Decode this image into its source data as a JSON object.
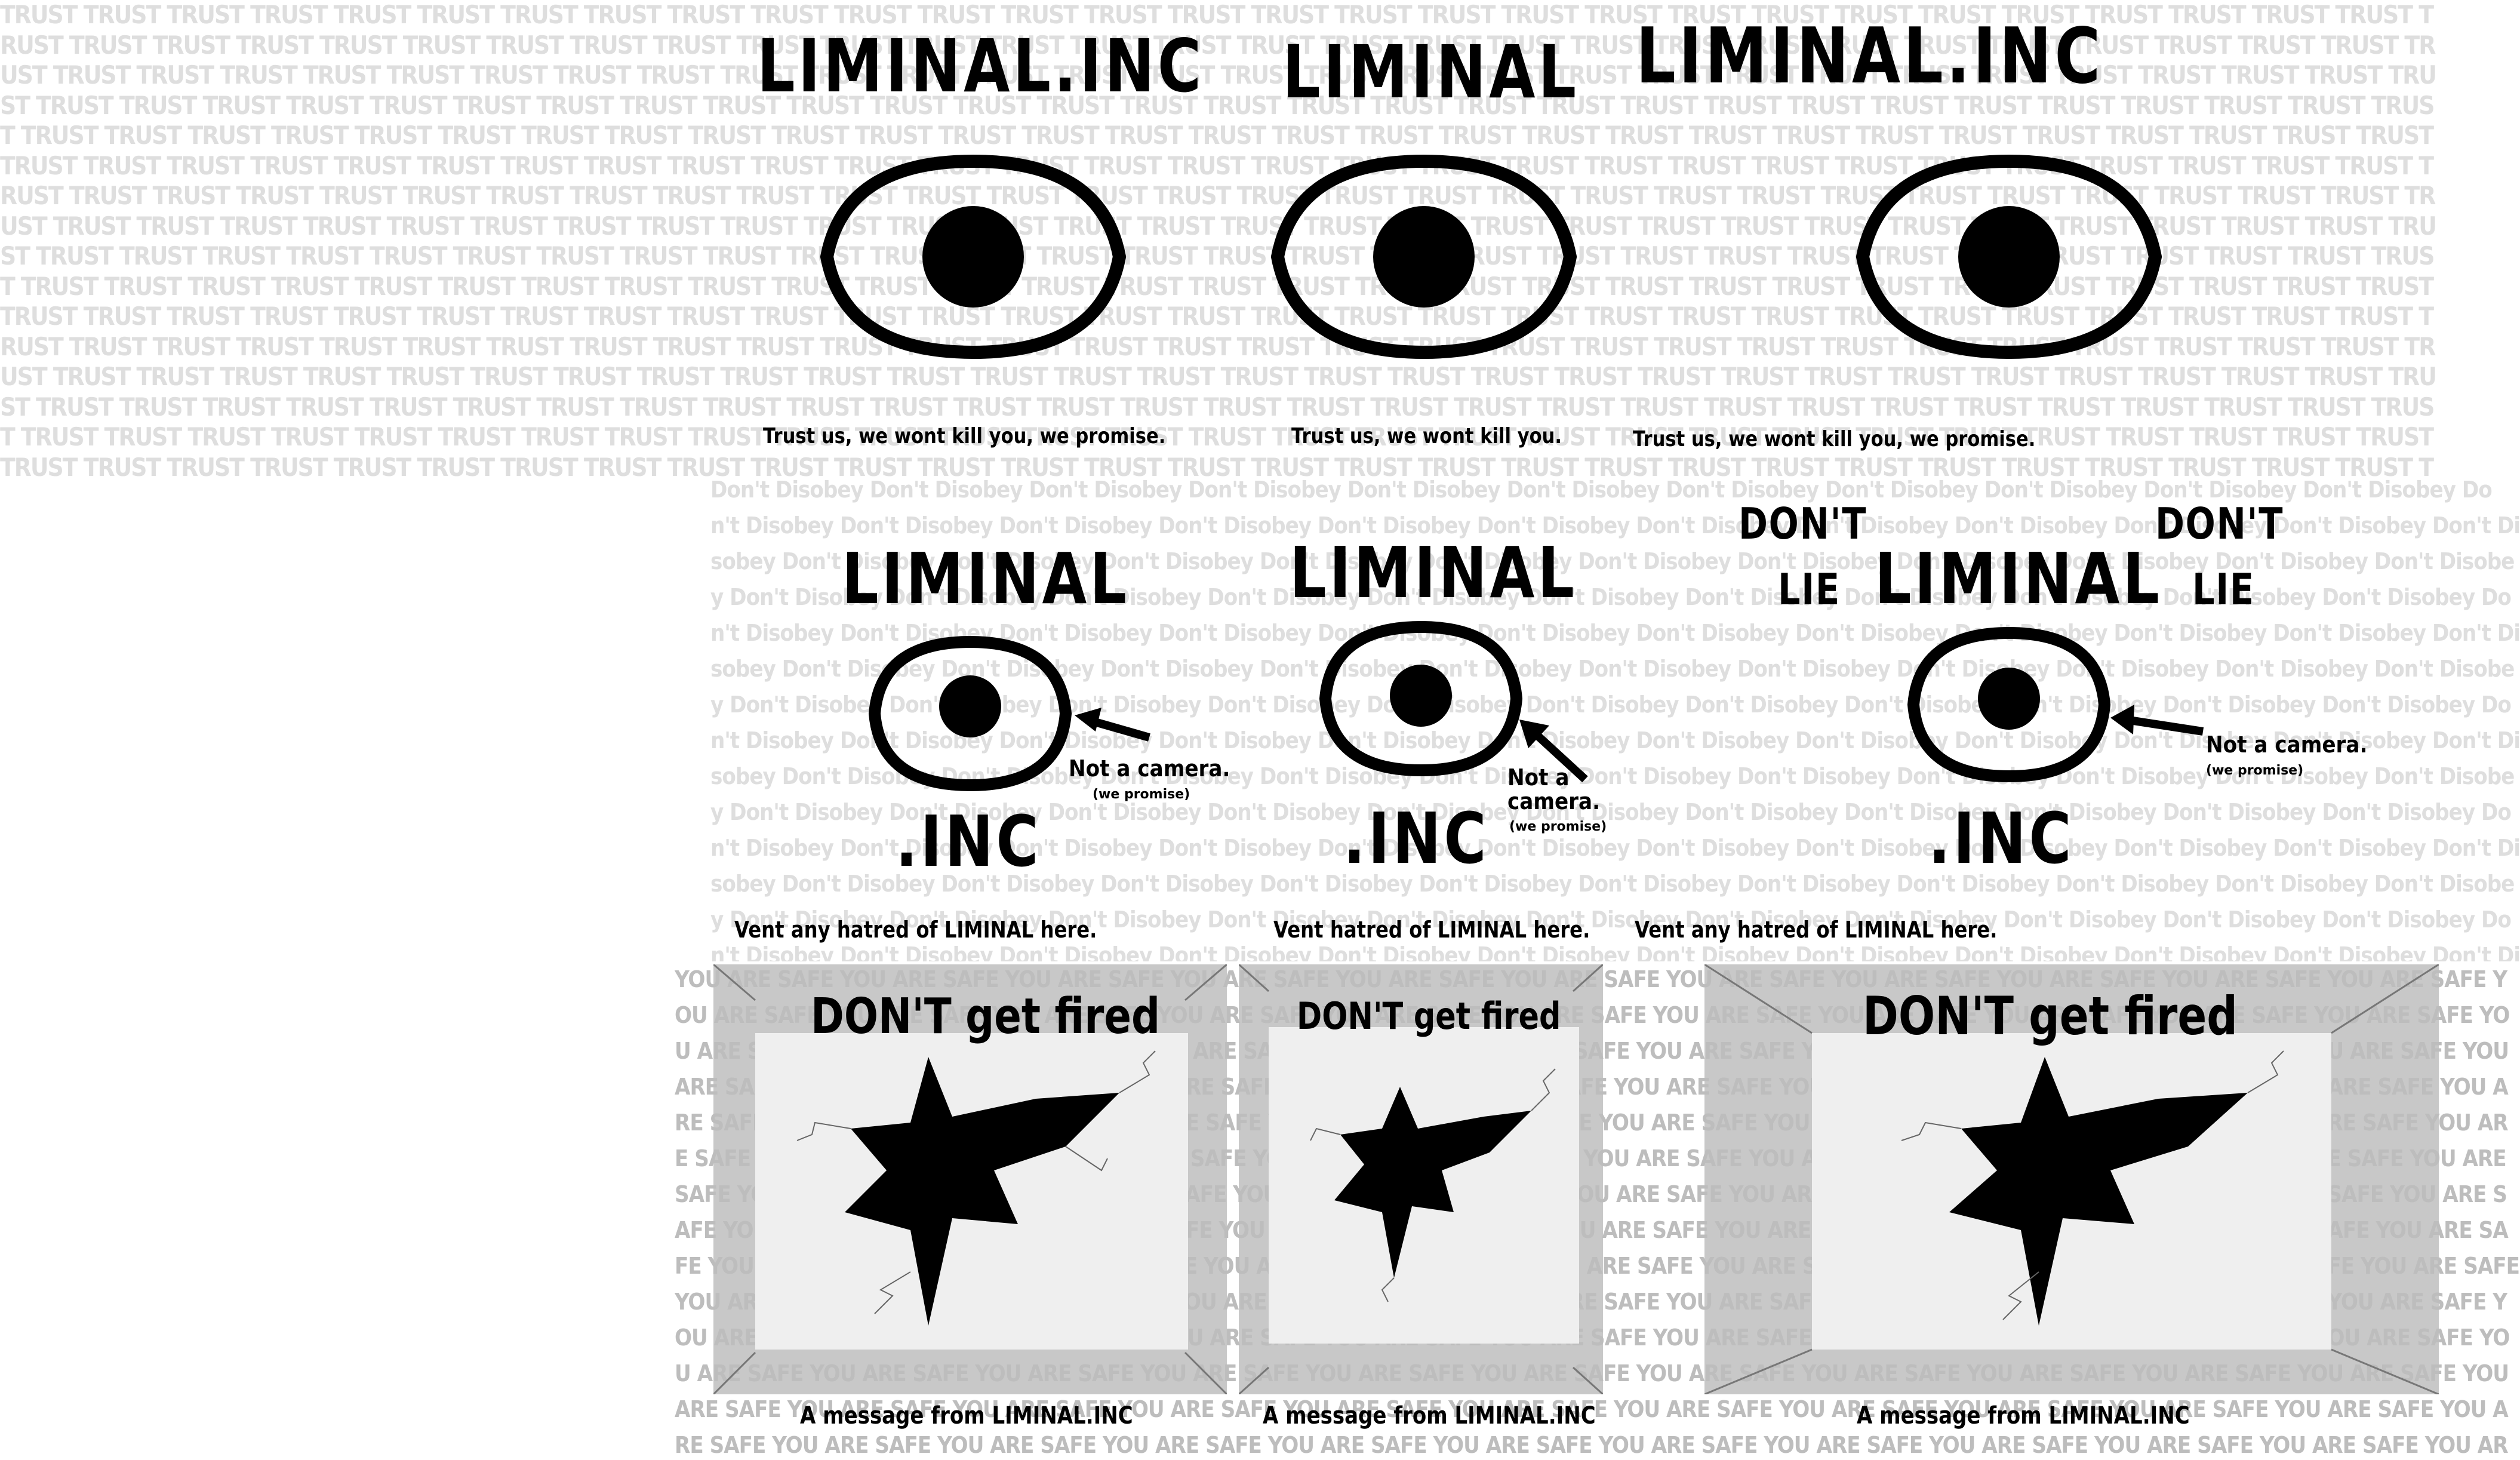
{
  "backgrounds": {
    "trust_text": "TRUST TRUST TRUST TRUST TRUST TRUST TRUST TRUST TRUST TRUST TRUST TRUST TRUST TRUST TRUST TRUST TRUST TRUST TRUST TRUST TRUST TRUST TRUST TRUST TRUST TRUST TRUST TRUST TRUST TRUST TRUST TRUST TRUST TRUST TRUST TRUST TRUST TRUST TRUST TRUST TRUST TRUST TRUST TRUST TRUST TRUST TRUST TRUST TRUST TRUST TRUST TRUST TRUST TRUST TRUST TRUST TRUST TRUST TRUST TRUST TRUST TRUST TRUST TRUST TRUST TRUST TRUST TRUST TRUST TRUST TRUST TRUST TRUST TRUST TRUST TRUST TRUST TRUST TRUST TRUST TRUST TRUST TRUST TRUST TRUST TRUST TRUST TRUST TRUST TRUST TRUST TRUST TRUST TRUST TRUST TRUST TRUST TRUST TRUST TRUST TRUST TRUST TRUST TRUST TRUST TRUST TRUST TRUST TRUST TRUST TRUST TRUST TRUST TRUST TRUST TRUST TRUST TRUST TRUST TRUST TRUST TRUST TRUST TRUST TRUST TRUST TRUST TRUST TRUST TRUST TRUST TRUST TRUST TRUST TRUST TRUST TRUST TRUST TRUST TRUST TRUST TRUST TRUST TRUST TRUST TRUST TRUST TRUST TRUST TRUST TRUST TRUST TRUST TRUST TRUST TRUST TRUST TRUST TRUST TRUST TRUST TRUST TRUST TRUST TRUST TRUST TRUST TRUST TRUST TRUST TRUST TRUST TRUST TRUST TRUST TRUST TRUST TRUST TRUST TRUST TRUST TRUST TRUST TRUST TRUST TRUST TRUST TRUST TRUST TRUST TRUST TRUST TRUST TRUST TRUST TRUST TRUST TRUST TRUST TRUST TRUST TRUST TRUST TRUST TRUST TRUST TRUST TRUST TRUST TRUST TRUST TRUST TRUST TRUST TRUST TRUST TRUST TRUST TRUST TRUST TRUST TRUST TRUST TRUST TRUST TRUST TRUST TRUST TRUST TRUST TRUST TRUST TRUST TRUST TRUST TRUST TRUST TRUST TRUST TRUST TRUST TRUST TRUST TRUST TRUST TRUST TRUST TRUST TRUST TRUST TRUST TRUST TRUST TRUST TRUST TRUST TRUST TRUST TRUST TRUST TRUST TRUST TRUST TRUST TRUST TRUST TRUST TRUST TRUST TRUST TRUST TRUST TRUST TRUST TRUST TRUST TRUST TRUST TRUST TRUST TRUST TRUST TRUST TRUST TRUST TRUST TRUST TRUST TRUST TRUST TRUST TRUST TRUST TRUST TRUST TRUST TRUST TRUST TRUST TRUST TRUST TRUST TRUST TRUST TRUST TRUST TRUST TRUST TRUST TRUST TRUST TRUST TRUST TRUST TRUST TRUST TRUST TRUST TRUST TRUST TRUST TRUST TRUST TRUST TRUST TRUST TRUST TRUST TRUST TRUST TRUST TRUST TRUST TRUST TRUST TRUST TRUST TRUST TRUST TRUST TRUST TRUST TRUST TRUST TRUST TRUST TRUST TRUST TRUST TRUST TRUST TRUST TRUST TRUST TRUST TRUST TRUST TRUST TRUST TRUST TRUST TRUST TRUST TRUST TRUST TRUST TRUST TRUST TRUST TRUST TRUST TRUST TRUST TRUST TRUST TRUST TRUST TRUST TRUST TRUST TRUST TRUST TRUST TRUST TRUST TRUST TRUST TRUST TRUST TRUST TRUST TRUST TRUST TRUST TRUST TRUST TRUST TRUST TRUST TRUST TRUST TRUST TRUST TRUST TRUST TRUST TRUST TRUST TRUST TRUST TRUST TRUST TRUST TRUST TRUST TRUST TRUST TRUST TRUST TRUST TRUST TRUST TRUST TRUST TRUST TRUST TRUST TRUST TRUST TRUST TRUST TRUST TRUST TRUST TRUST TRUST TRUST TRUST TRUST TRUST TRUST TRUST TRUST TRUST TRUST TRUST TRUST TRUST TRUST TRUST TRUST TRUST TRUST TRUST TRUST TRUST TRUST TRUST TRUST TRUST TRUST TRUST TRUST TRUST TRUST TRUST TRUST TRUST TRUST TRUST TRUST TRUST TRUST TRUST TRUST TRUST TRUST TRUST TRUST TRUST TRUST TRUST TRUST TRUST TRUST TRUST TRUST TRUST TRUST TRUST TRUST TRUST TRUST TRUST TRUST TRUST TRUST TRUST TRUST TRUST TRUST TRUST TRUST TRUST TRUST TRUST TRUST TRUST TRUST TRUST TRUST TRUST TRUST TRUST TRUST TRUST TRUST TRUST TRUST TRUST TRUST TRUST TRUST TRUST TRUST TRUST TRUST TRUST TRUST TRUST TRUST TRUST TRUST TRUST TRUST TRUST TRUST TRUST TRUST TRUST TRUST TRUST TRUST TRUST TRUST TRUST TRUST TRUST TRUST TRUST TRUST TRUST TRUST TRUST TRUST TRUST TRUST TRUST TRUST TRUST TRUST TRUST TRUST TRUST TRUST TRUST TRUST TRUST TRUST TRUST TRUST TRUST TRUST TRUST TRUST TRUST TRUST TRUST TRUST TRUST TRUST TRUST TRUST TRUST TRUST TRUST TRUST TRUST TRUST TRUST TRUST TRUST TRUST TRUST TRUST TRUST TRUST TRUST TRUST TRUST TRUST TRUST TRUST TRUST TRUST TRUST TRUST TRUST TRUST TRUST TRUST TRUST TRUST TRUST TRUST TRUST TRUST TRUST TRUST TRUST TRUST TRUST TRUST TRUST TRUST TRUST TRUST TRUST TRUST TRUST TRUST TRUST TRUST TRUST TRUST TRUST TRUST TRUST TRUST TRUST TRUST TRUST TRUST TRUST TRUST TRUST TRUST TRUST TRUST TRUST TRUST TRUST TRUST TRUST TRUST TRUST TRUST TRUST TRUST TRUST TRUST TRUST TRUST TRUST TRUST TRUST TRUST TRUST TRUST TRUST TRUST TRUST TRUST TRUST TRUST TRUST TRUST TRUST TRUST TRUST TRUST TRUST TRUST TRUST TRUST TRUST TRUST TRUST TRUST TRUST TRUST TRUST TRUST TRUST TRUST TRUST TRUST TRUST TRUST TRUST TRUST TRUST TRUST TRUST TRUST TRUST TRUST TRUST TRUST TRUST TRUST TRUST TRUST TRUST TRUST TRUST TRUST TRUST TRUST TRUST TRUST TRUST TRUST TRUST TRUST TRUST TRUST TRUST TRUST TRUST TRUST TRUST TRUST TRUST TRUST TRUST TRUST TRUST TRUST TRUST TRUST TRUST TRUST TRUST TRUST TRUST TRUST TRUST TRUST TRUST TRUST TRUST TRUST TRUST TRUST TRUST TRUST TRUST TRUST TRUST TRUST TRUST TRUST TRUST TRUST TRUST TRUST TRUST TRUST TRUST TRUST TRUST TRUST TRUST TRUST TRUST TRUST TRUST TRUST TRUST TRUST TRUST TRUST TRUST TRUST TRUST TRUST TRUST TRUST TRUST TRUST TRUST TRUST TRUST TRUST TRUST TRUST TRUST TRUST TRUST TRUST TRUST TRUST TRUST TRUST TRUST TRUST TRUST TRUST TRUST TRUST TRUST TRUST TRUST TRUST TRUST TRUST TRUST TRUST TRUST TRUST TRUST TRUST TRUST TRUST TRUST TRUST TRUST TRUST TRUST TRUST TRUST TRUST TRUST TRUST TRUST TRUST TRUST TRUST TRUST TRUST TRUST TRUST TRUST TRUST TRUST TRUST TRUST TRUST TRUST TRUST TRUST TRUST TRUST TRUST TRUST TRUST TRUST TRUST TRUST TRUST TRUST TRUST TRUST TRUST TRUST TRUST TRUST TRUST TRUST TRUST TRUST TRUST TRUST TRUST TRUST TRUST TRUST TRUST TRUST TRUST TRUST TRUST TRUST TRUST TRUST TRUST TRUST TRUST TRUST TRUST TRUST TRUST TRUST TRUST TRUST TRUST TRUST TRUST TRUST TRUST TRUST TRUST TRUST TRUST TRUST TRUST TRUST TRUST TRUST TRUST TRUST TRUST TRUST TRUST TRUST TRUST TRUST TRUST TRUST TRUST TRUST TRUST TRUST TRUST TRUST TRUST TRUST TRUST TRUST TRUST TRUST TRUST TRUST TRUST TRUST TRUST TRUST TRUST TRUST TRUST TRUST TRUST TRUST TRUST TRUST TRUST TRUST TRUST TRUST TRUST TRUST TRUST TRUST TRUST TRUST TRUST TRUST TRUST TRUST TRUST TRUST TRUST TRUST TRUST TRUST TRUST TRUST TRUST TRUST TRUST TRUST TRUST TRUST TRUST TRUST TRUST TRUST TRUST TRUST TRUST TRUST TRUST TRUST TRUST TRUST TRUST TRUST TRUST TRUST TRUST TRUST TRUST TRUST TRUST TRUST TRUST TRUST TRUST TRUST TRUST TRUST TRUST TRUST TRUST TRUST TRUST TRUST TRUST TRUST TRUST TRUST TRUST TRUST TRUST TRUST TRUST TRUST TRUST TRUST TRUST TRUST TRUST TRUST TRUST TRUST TRUST TRUST TRUST TRUST TRUST TRUST TRUST TRUST TRUST TRUST TRUST TRUST TRUST TRUST TRUST TRUST TRUST TRUST TRUST TRUST TRUST TRUST TRUST TRUST TRUST TRUST TRUST TRUST TRUST TRUST TRUST TRUST TRUST TRUST TRUST TRUST TRUST TRUST TRUST TRUST TRUST TRUST TRUST TRUST TRUST TRUST TRUST TRUST TRUST TRUST TRUST TRUST TRUST TRUST TRUST TRUST TRUST TRUST TRUST TRUST TRUST TRUST TRUST TRUST TRUST TRUST TRUST TRUST TRUST TRUST TRUST TRUST TRUST TRUST TRUST TRUST TRUST TRUST TRUST TRUST TRUST TRUST TRUST TRUST TRUST TRUST TRUST TRUST TRUST TRUST TRUST TRUST TRUST TRUST TRUST TRUST TRUST TRUST TRUST TRUST TRUST TRUST TRUST TRUST TRUST TRUST TRUST TRUST TRUST TRUST TRUST TRUST TRUST TRUST TRUST TRUST TRUST TRUST TRUST TRUST TRUST TRUST TRUST TRUST TRUST TRUST TRUST",
    "disobey_text": "Don't Disobey Don't Disobey Don't Disobey Don't Disobey Don't Disobey Don't Disobey Don't Disobey Don't Disobey Don't Disobey Don't Disobey Don't Disobey Don't Disobey Don't Disobey Don't Disobey Don't Disobey Don't Disobey Don't Disobey Don't Disobey Don't Disobey Don't Disobey Don't Disobey Don't Disobey Don't Disobey Don't Disobey Don't Disobey Don't Disobey Don't Disobey Don't Disobey Don't Disobey Don't Disobey Don't Disobey Don't Disobey Don't Disobey Don't Disobey Don't Disobey Don't Disobey Don't Disobey Don't Disobey Don't Disobey Don't Disobey Don't Disobey Don't Disobey Don't Disobey Don't Disobey Don't Disobey Don't Disobey Don't Disobey Don't Disobey Don't Disobey Don't Disobey Don't Disobey Don't Disobey Don't Disobey Don't Disobey Don't Disobey Don't Disobey Don't Disobey Don't Disobey Don't Disobey Don't Disobey Don't Disobey Don't Disobey Don't Disobey Don't Disobey Don't Disobey Don't Disobey Don't Disobey Don't Disobey Don't Disobey Don't Disobey Don't Disobey Don't Disobey Don't Disobey Don't Disobey Don't Disobey Don't Disobey Don't Disobey Don't Disobey Don't Disobey Don't Disobey Don't Disobey Don't Disobey Don't Disobey Don't Disobey Don't Disobey Don't Disobey Don't Disobey Don't Disobey Don't Disobey Don't Disobey Don't Disobey Don't Disobey Don't Disobey Don't Disobey Don't Disobey Don't Disobey Don't Disobey Don't Disobey Don't Disobey Don't Disobey Don't Disobey Don't Disobey Don't Disobey Don't Disobey Don't Disobey Don't Disobey Don't Disobey Don't Disobey Don't Disobey Don't Disobey Don't Disobey Don't Disobey Don't Disobey Don't Disobey Don't Disobey Don't Disobey Don't Disobey Don't Disobey Don't Disobey Don't Disobey Don't Disobey Don't Disobey Don't Disobey Don't Disobey Don't Disobey Don't Disobey Don't Disobey Don't Disobey Don't Disobey Don't Disobey Don't Disobey Don't Disobey Don't Disobey Don't Disobey Don't Disobey Don't Disobey Don't Disobey Don't Disobey Don't Disobey Don't Disobey Don't Disobey Don't Disobey Don't Disobey Don't Disobey Don't Disobey Don't Disobey Don't Disobey Don't Disobey Don't Disobey Don't Disobey Don't Disobey Don't Disobey Don't Disobey Don't Disobey Don't Disobey Don't Disobey Don't Disobey Don't Disobey Don't Disobey Don't Disobey Don't Disobey Don't Disobey Don't Disobey Don't Disobey Don't Disobey Don't Disobey Don't Disobey Don't Disobey Don't Disobey Don't Disobey Don't Disobey Don't Disobey Don't Disobey Don't Disobey Don't Disobey Don't Disobey Don't Disobey Don't Disobey Don't Disobey Don't Disobey Don't Disobey Don't Disobey Don't Disobey Don't Disobey Don't Disobey Don't Disobey Don't Disobey Don't Disobey Don't Disobey Don't Disobey Don't Disobey Don't Disobey Don't Disobey Don't Disobey Don't Disobey Don't Disobey Don't Disobey Don't Disobey Don't Disobey Don't Disobey Don't Disobey Don't Disobey Don't Disobey Don't Disobey Don't Disobey Don't Disobey Don't Disobey Don't Disobey Don't Disobey Don't Disobey Don't Disobey Don't Disobey Don't Disobey Don't Disobey Don't Disobey Don't Disobey Don't Disobey Don't Disobey Don't Disobey Don't Disobey Don't Disobey Don't Disobey Don't Disobey Don't Disobey Don't Disobey Don't Disobey Don't Disobey Don't Disobey Don't Disobey Don't Disobey Don't Disobey Don't Disobey Don't Disobey Don't Disobey Don't Disobey Don't Disobey Don't Disobey Don't Disobey Don't Disobey Don't Disobey Don't Disobey Don't Disobey Don't Disobey Don't Disobey Don't Disobey Don't Disobey Don't Disobey Don't Disobey Don't Disobey Don't Disobey Don't Disobey Don't Disobey Don't Disobey Don't Disobey Don't Disobey Don't Disobey Don't Disobey Don't Disobey Don't Disobey Don't Disobey Don't Disobey Don't Disobey Don't Disobey Don't Disobey Don't Disobey Don't Disobey Don't Disobey Don't Disobey Don't Disobey Don't Disobey Don't Disobey Don't Disobey Don't Disobey Don't Disobey Don't Disobey Don't Disobey Don't Disobey Don't Disobey Don't Disobey Don't Disobey Don't Disobey Don't Disobey Don't Disobey Don't Disobey Don't Disobey Don't Disobey Don't Disobey Don't Disobey",
    "safe_text": "YOU ARE SAFE YOU ARE SAFE YOU ARE SAFE YOU ARE SAFE YOU ARE SAFE YOU ARE SAFE YOU ARE SAFE YOU ARE SAFE YOU ARE SAFE YOU ARE SAFE YOU ARE SAFE YOU ARE SAFE YOU ARE SAFE YOU ARE SAFE YOU ARE SAFE YOU ARE SAFE YOU ARE SAFE YOU ARE SAFE YOU ARE SAFE YOU ARE SAFE YOU ARE SAFE YOU ARE SAFE YOU ARE SAFE YOU ARE SAFE YOU ARE SAFE YOU ARE SAFE YOU ARE SAFE YOU ARE SAFE YOU ARE SAFE YOU ARE SAFE YOU ARE SAFE YOU ARE SAFE YOU ARE SAFE YOU ARE SAFE YOU ARE SAFE YOU ARE SAFE YOU ARE SAFE YOU ARE SAFE YOU ARE SAFE YOU ARE SAFE YOU ARE SAFE YOU ARE SAFE YOU ARE SAFE YOU ARE SAFE YOU ARE SAFE YOU ARE SAFE YOU ARE SAFE YOU ARE SAFE YOU ARE SAFE YOU ARE SAFE YOU ARE SAFE YOU ARE SAFE YOU ARE SAFE YOU ARE SAFE YOU ARE SAFE YOU ARE SAFE YOU ARE SAFE YOU ARE SAFE YOU ARE SAFE YOU ARE SAFE YOU ARE SAFE YOU ARE SAFE YOU ARE SAFE YOU ARE SAFE YOU ARE SAFE YOU ARE SAFE YOU ARE SAFE YOU ARE SAFE YOU ARE SAFE YOU ARE SAFE YOU ARE SAFE YOU ARE SAFE YOU ARE SAFE YOU ARE SAFE YOU ARE SAFE YOU ARE SAFE YOU ARE SAFE YOU ARE SAFE YOU ARE SAFE YOU ARE SAFE YOU ARE SAFE YOU ARE SAFE YOU ARE SAFE YOU ARE SAFE YOU ARE SAFE YOU ARE SAFE YOU ARE SAFE YOU ARE SAFE YOU ARE SAFE YOU ARE SAFE YOU ARE SAFE YOU ARE SAFE YOU ARE SAFE YOU ARE SAFE YOU ARE SAFE YOU ARE SAFE YOU ARE SAFE YOU ARE SAFE YOU ARE SAFE YOU ARE SAFE YOU ARE SAFE YOU ARE SAFE YOU ARE SAFE YOU ARE SAFE YOU ARE SAFE YOU ARE SAFE YOU ARE SAFE YOU ARE SAFE YOU ARE SAFE YOU ARE SAFE YOU ARE SAFE YOU ARE SAFE YOU ARE SAFE YOU ARE SAFE YOU ARE SAFE YOU ARE SAFE YOU ARE SAFE YOU ARE SAFE YOU ARE SAFE YOU ARE SAFE YOU ARE SAFE YOU ARE SAFE YOU ARE SAFE YOU ARE SAFE YOU ARE SAFE YOU ARE SAFE YOU ARE SAFE YOU ARE SAFE YOU ARE SAFE YOU ARE SAFE YOU ARE SAFE YOU ARE SAFE YOU ARE SAFE YOU ARE SAFE YOU ARE SAFE YOU ARE SAFE YOU ARE SAFE YOU ARE SAFE YOU ARE SAFE YOU ARE SAFE YOU ARE SAFE YOU ARE SAFE YOU ARE SAFE YOU ARE SAFE YOU ARE SAFE YOU ARE SAFE YOU ARE SAFE YOU ARE SAFE YOU ARE SAFE YOU ARE SAFE YOU ARE SAFE YOU ARE SAFE YOU ARE SAFE YOU ARE SAFE YOU ARE SAFE YOU ARE SAFE YOU ARE SAFE YOU ARE SAFE YOU ARE SAFE YOU ARE SAFE YOU ARE SAFE YOU ARE SAFE YOU ARE SAFE YOU ARE SAFE YOU ARE SAFE YOU ARE SAFE YOU ARE SAFE YOU ARE SAFE YOU ARE SAFE YOU ARE SAFE YOU ARE SAFE YOU ARE SAFE YOU ARE SAFE YOU ARE SAFE YOU ARE SAFE YOU ARE SAFE YOU ARE SAFE YOU ARE SAFE YOU ARE SAFE YOU ARE SAFE YOU ARE SAFE YOU ARE SAFE YOU ARE SAFE YOU ARE SAFE YOU ARE SAFE YOU ARE SAFE YOU ARE SAFE YOU ARE SAFE YOU ARE SAFE YOU ARE SAFE YOU ARE SAFE YOU ARE SAFE YOU ARE SAFE YOU ARE SAFE YOU ARE SAFE YOU ARE SAFE YOU ARE SAFE YOU ARE SAFE YOU ARE SAFE YOU ARE SAFE YOU ARE SAFE YOU ARE SAFE YOU ARE SAFE YOU ARE SAFE YOU ARE SAFE YOU ARE SAFE YOU ARE SAFE YOU ARE SAFE YOU ARE SAFE YOU ARE SAFE YOU ARE SAFE YOU ARE SAFE YOU ARE SAFE YOU ARE SAFE YOU ARE SAFE YOU ARE SAFE YOU ARE SAFE YOU ARE SAFE YOU ARE SAFE YOU ARE SAFE YOU ARE SAFE YOU ARE SAFE YOU ARE SAFE YOU ARE SAFE YOU ARE SAFE YOU ARE SAFE YOU ARE SAFE YOU ARE SAFE YOU ARE SAFE YOU ARE SAFE YOU ARE SAFE YOU ARE SAFE YOU ARE SAFE YOU ARE SAFE YOU ARE SAFE YOU ARE SAFE YOU ARE SAFE YOU ARE SAFE YOU ARE SAFE YOU ARE SAFE YOU ARE SAFE YOU ARE SAFE YOU ARE SAFE YOU ARE SAFE YOU ARE SAFE YOU ARE SAFE YOU ARE SAFE YOU ARE SAFE YOU ARE SAFE YOU ARE SAFE YOU ARE SAFE YOU ARE SAFE YOU ARE SAFE YOU ARE SAFE YOU ARE SAFE YOU ARE SAFE YOU ARE SAFE YOU ARE SAFE YOU ARE SAFE YOU ARE SAFE YOU ARE SAFE"
  },
  "row1": {
    "poster1": {
      "logo": "LIMINAL.INC",
      "caption": "Trust us, we wont kill you, we promise."
    },
    "poster2": {
      "logo": "LIMINAL",
      "caption": "Trust us, we wont kill you."
    },
    "poster3": {
      "logo": "LIMINAL.INC",
      "caption": "Trust us, we wont kill you, we promise."
    }
  },
  "row2": {
    "poster1": {
      "logo_top": "LIMINAL",
      "logo_bottom": ".INC",
      "note": "Not a camera.",
      "note_small": "(we promise)",
      "caption": "Vent any hatred of LIMINAL here."
    },
    "poster2": {
      "logo_top": "LIMINAL",
      "logo_bottom": ".INC",
      "note_line1": "Not a",
      "note_line2": "camera.",
      "note_small": "(we promise)",
      "caption": "Vent hatred of LIMINAL here."
    },
    "poster3": {
      "dont_left": "DON'T",
      "lie_left": "LIE",
      "logo_top": "LIMINAL",
      "dont_right": "DON'T",
      "lie_right": "LIE",
      "logo_bottom": ".INC",
      "note": "Not a camera.",
      "note_small": "(we promise)",
      "caption": "Vent any hatred of LIMINAL here."
    }
  },
  "row3": {
    "poster1": {
      "headline": "DON'T get fired",
      "footer": "A message from LIMINAL.INC"
    },
    "poster2": {
      "headline": "DON'T get fired",
      "footer": "A message from LIMINAL.INC"
    },
    "poster3": {
      "headline": "DON'T get fired",
      "footer": "A message from LIMINAL.INC"
    }
  },
  "colors": {
    "ink": "#000000",
    "bg_text": "#dedede",
    "safe_text": "#bdbdbd",
    "frame": "#c8c8c8",
    "panel": "#efefef"
  }
}
